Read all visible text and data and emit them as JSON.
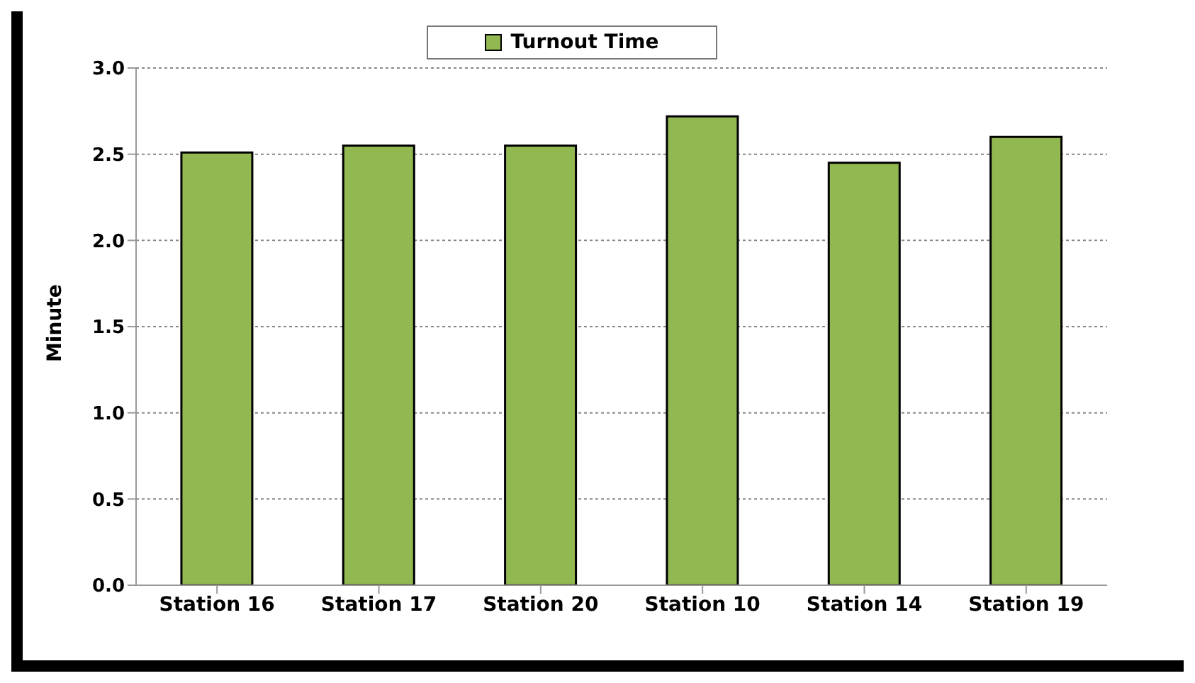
{
  "chart_data": {
    "type": "bar",
    "ylabel": "Minute",
    "categories": [
      "Station 16",
      "Station 17",
      "Station 20",
      "Station 10",
      "Station 14",
      "Station 19"
    ],
    "series": [
      {
        "name": "Turnout Time",
        "color": "#92b851",
        "values": [
          2.51,
          2.55,
          2.55,
          2.72,
          2.45,
          2.6
        ]
      }
    ],
    "ylim": [
      0,
      3
    ],
    "yticks": [
      {
        "value": 0,
        "label": "0.0"
      },
      {
        "value": 0.5,
        "label": "0.5"
      },
      {
        "value": 1,
        "label": "1.0"
      },
      {
        "value": 1.5,
        "label": "1.5"
      },
      {
        "value": 2,
        "label": "2.0"
      },
      {
        "value": 2.5,
        "label": "2.5"
      },
      {
        "value": 3,
        "label": "3.0"
      }
    ],
    "grid": "y",
    "legend": "top"
  }
}
